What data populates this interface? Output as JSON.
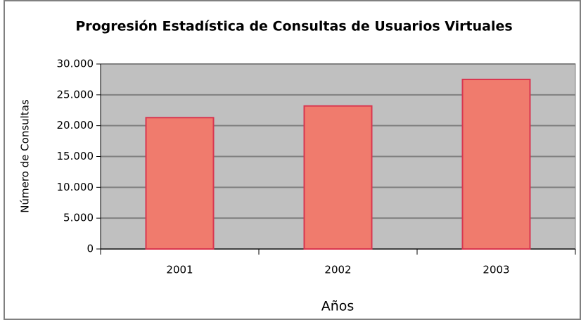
{
  "chart_data": {
    "type": "bar",
    "title": "Progresión Estadística de Consultas de Usuarios Virtuales",
    "x_label": "Años",
    "y_label": "Número de Consultas",
    "categories": [
      "2001",
      "2002",
      "2003"
    ],
    "values": [
      21300,
      23200,
      27500
    ],
    "color": "#f07b6d",
    "ylim": [
      0,
      30000
    ],
    "yticks": [
      0,
      {
        "value": 5000,
        "label": "5.000"
      },
      {
        "value": 10000,
        "label": "10.000"
      },
      {
        "value": 15000,
        "label": "15.000"
      },
      {
        "value": 20000,
        "label": "20.000"
      },
      {
        "value": 25000,
        "label": "25.000"
      },
      {
        "value": 30000,
        "label": "30.000"
      }
    ],
    "grid": true
  }
}
